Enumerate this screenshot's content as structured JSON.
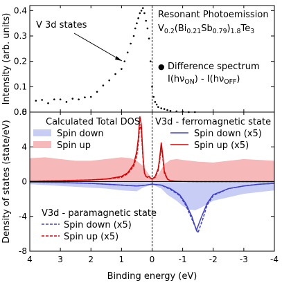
{
  "chart_data": [
    {
      "type": "scatter",
      "panel": "top",
      "ylabel": "Intensity (arb. units)",
      "ylim": [
        0.0,
        0.42
      ],
      "y_ticks": [
        "0.0",
        "0.1",
        "0.2",
        "0.3",
        "0.4"
      ],
      "xlim": [
        4,
        -4
      ],
      "x_reversed": true,
      "grid": false,
      "annotations": {
        "v3d_label": "V 3d states",
        "title_line1": "Resonant Photoemission",
        "title_line2": "V0.2(Bi0.21Sb0.79)1.8Te3",
        "legend_marker": "●",
        "legend_line1": "Difference spectrum",
        "legend_line2": "I(hνON) - I(hνOFF)"
      },
      "series": [
        {
          "name": "Difference spectrum",
          "color": "#000000",
          "x": [
            3.8,
            3.6,
            3.4,
            3.2,
            3.0,
            2.8,
            2.6,
            2.4,
            2.2,
            2.0,
            1.8,
            1.6,
            1.4,
            1.2,
            1.0,
            0.9,
            0.8,
            0.7,
            0.6,
            0.55,
            0.5,
            0.45,
            0.4,
            0.35,
            0.3,
            0.25,
            0.2,
            0.15,
            0.1,
            0.05,
            0.0,
            -0.05,
            -0.1,
            -0.15,
            -0.2,
            -0.3,
            -0.4,
            -0.5,
            -0.6,
            -0.8,
            -1.0,
            -1.2,
            -1.4
          ],
          "values": [
            0.045,
            0.048,
            0.035,
            0.05,
            0.05,
            0.04,
            0.053,
            0.05,
            0.058,
            0.06,
            0.08,
            0.105,
            0.125,
            0.15,
            0.17,
            0.2,
            0.235,
            0.27,
            0.3,
            0.33,
            0.35,
            0.37,
            0.39,
            0.4,
            0.41,
            0.39,
            0.36,
            0.33,
            0.29,
            0.2,
            0.1,
            0.06,
            0.04,
            0.03,
            0.02,
            0.015,
            0.012,
            0.008,
            0.005,
            0.003,
            0.002,
            0.0,
            0.0
          ]
        }
      ]
    },
    {
      "type": "line",
      "panel": "bottom",
      "xlabel": "Binding energy (eV)",
      "ylabel": "Density of states (state/eV)",
      "xlim": [
        4,
        -4
      ],
      "x_reversed": true,
      "ylim": [
        -8,
        8
      ],
      "x_ticks": [
        "4",
        "3",
        "2",
        "1",
        "0",
        "-1",
        "-2",
        "-3",
        "-4"
      ],
      "y_ticks": [
        "-8",
        "-4",
        "0",
        "4",
        "8"
      ],
      "grid": false,
      "annotations": {
        "ferro_title": "V3d - ferromagnetic state",
        "para_title": "V3d - paramagnetic state",
        "calc_title": "Calculated Total DOS"
      },
      "series": [
        {
          "name": "Spin down",
          "group": "Calculated Total DOS",
          "style": "filled",
          "color": "#c8cdf5",
          "x": [
            4.0,
            3.0,
            2.5,
            2.0,
            1.5,
            1.0,
            0.5,
            0.3,
            0.0,
            -0.3,
            -0.5,
            -0.8,
            -1.0,
            -1.2,
            -1.4,
            -1.6,
            -1.8,
            -2.0,
            -2.5,
            -3.0,
            -3.5,
            -4.0
          ],
          "values": [
            -0.3,
            -0.5,
            -0.6,
            -0.7,
            -0.8,
            -1.0,
            -1.1,
            -0.7,
            -0.3,
            -0.8,
            -1.5,
            -2.2,
            -2.8,
            -3.2,
            -3.3,
            -3.0,
            -2.6,
            -2.2,
            -1.8,
            -1.4,
            -1.2,
            -1.0
          ]
        },
        {
          "name": "Spin up",
          "group": "Calculated Total DOS",
          "style": "filled",
          "color": "#f6b8b8",
          "x": [
            4.0,
            3.5,
            3.0,
            2.5,
            2.0,
            1.5,
            1.0,
            0.7,
            0.5,
            0.3,
            0.1,
            0.0,
            -0.2,
            -0.4,
            -0.6,
            -0.8,
            -1.0,
            -1.5,
            -2.0,
            -2.5,
            -3.0,
            -3.5,
            -4.0
          ],
          "values": [
            2.7,
            2.8,
            2.6,
            2.4,
            2.4,
            2.6,
            2.8,
            2.7,
            2.4,
            1.8,
            0.8,
            0.4,
            0.8,
            2.0,
            2.5,
            2.6,
            2.5,
            2.3,
            2.2,
            2.4,
            2.6,
            2.5,
            2.4
          ]
        },
        {
          "name": "Spin down (x5)",
          "group": "V3d - ferromagnetic state",
          "style": "solid",
          "color": "#4040cc",
          "x": [
            4.0,
            3.0,
            2.0,
            1.5,
            1.0,
            0.5,
            0.2,
            0.0,
            -0.3,
            -0.6,
            -0.9,
            -1.1,
            -1.3,
            -1.45,
            -1.6,
            -1.8,
            -2.0,
            -2.5,
            -3.0,
            -3.5,
            -4.0
          ],
          "values": [
            -0.05,
            -0.1,
            -0.2,
            -0.3,
            -0.4,
            -0.5,
            -0.4,
            -0.3,
            -0.4,
            -0.8,
            -1.5,
            -2.5,
            -4.0,
            -5.6,
            -4.2,
            -2.5,
            -1.5,
            -0.8,
            -0.5,
            -0.3,
            -0.2
          ]
        },
        {
          "name": "Spin up (x5)",
          "group": "V3d - ferromagnetic state",
          "style": "solid",
          "color": "#e00000",
          "x": [
            4.0,
            3.0,
            2.0,
            1.5,
            1.0,
            0.8,
            0.6,
            0.5,
            0.45,
            0.4,
            0.35,
            0.3,
            0.25,
            0.2,
            0.15,
            0.1,
            0.05,
            0.0,
            -0.1,
            -0.2,
            -0.25,
            -0.3,
            -0.35,
            -0.4,
            -0.5,
            -0.6,
            -0.8,
            -1.0,
            -1.5,
            -2.0,
            -3.0,
            -4.0
          ],
          "values": [
            0.05,
            0.1,
            0.2,
            0.3,
            0.6,
            1.0,
            2.0,
            3.5,
            5.0,
            7.5,
            6.5,
            3.0,
            1.0,
            0.6,
            0.5,
            0.6,
            0.4,
            0.3,
            0.6,
            1.5,
            2.8,
            4.5,
            3.0,
            1.2,
            0.3,
            0.1,
            0.05,
            0.02,
            0.0,
            0.0,
            0.0,
            0.0
          ]
        },
        {
          "name": "Spin down (x5)",
          "group": "V3d - paramagnetic state",
          "style": "dashed",
          "color": "#4040cc",
          "x": [
            4.0,
            3.0,
            2.0,
            1.5,
            1.0,
            0.5,
            0.2,
            0.0,
            -0.3,
            -0.6,
            -0.9,
            -1.1,
            -1.3,
            -1.5,
            -1.65,
            -1.8,
            -2.0,
            -2.5,
            -3.0,
            -3.5,
            -4.0
          ],
          "values": [
            -0.05,
            -0.1,
            -0.2,
            -0.3,
            -0.4,
            -0.5,
            -0.4,
            -0.3,
            -0.4,
            -0.9,
            -1.6,
            -2.7,
            -4.3,
            -5.9,
            -4.4,
            -2.7,
            -1.6,
            -0.8,
            -0.5,
            -0.3,
            -0.2
          ]
        },
        {
          "name": "Spin up (x5)",
          "group": "V3d - paramagnetic state",
          "style": "dashed",
          "color": "#e00000",
          "x": [
            4.0,
            3.0,
            2.0,
            1.5,
            1.0,
            0.8,
            0.6,
            0.5,
            0.45,
            0.4,
            0.35,
            0.3,
            0.25,
            0.2,
            0.15,
            0.1,
            0.05,
            0.0,
            -0.1,
            -0.2,
            -0.25,
            -0.3,
            -0.35,
            -0.4,
            -0.5,
            -0.6,
            -0.8,
            -1.0,
            -1.5,
            -2.0,
            -3.0,
            -4.0
          ],
          "values": [
            0.05,
            0.1,
            0.2,
            0.3,
            0.5,
            0.9,
            1.8,
            3.0,
            4.5,
            6.6,
            5.8,
            2.8,
            1.0,
            0.6,
            0.5,
            0.5,
            0.4,
            0.3,
            0.5,
            1.3,
            2.5,
            4.0,
            2.7,
            1.0,
            0.3,
            0.1,
            0.05,
            0.02,
            0.0,
            0.0,
            0.0,
            0.0
          ]
        }
      ]
    }
  ]
}
